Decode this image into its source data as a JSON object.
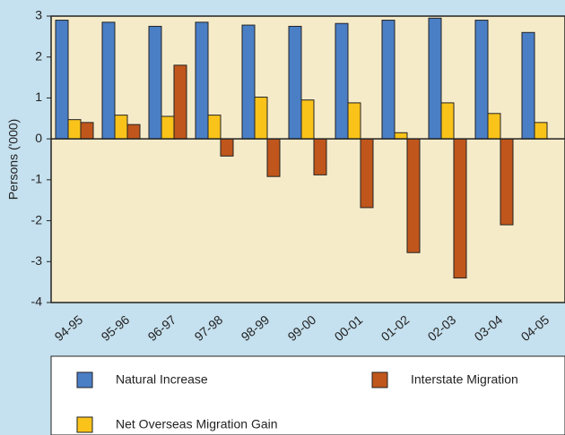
{
  "chart_data": {
    "type": "bar",
    "ylabel": "Persons ('000)",
    "categories": [
      "94-95",
      "95-96",
      "96-97",
      "97-98",
      "98-99",
      "99-00",
      "00-01",
      "01-02",
      "02-03",
      "03-04",
      "04-05"
    ],
    "series": [
      {
        "name": "Natural Increase",
        "color": "#4a7fc6",
        "values": [
          2.9,
          2.85,
          2.75,
          2.85,
          2.78,
          2.75,
          2.82,
          2.9,
          2.95,
          2.9,
          2.6
        ]
      },
      {
        "name": "Net Overseas Migration Gain",
        "color": "#f9c31a",
        "values": [
          0.47,
          0.58,
          0.55,
          0.58,
          1.02,
          0.95,
          0.88,
          0.15,
          0.88,
          0.62,
          0.4
        ]
      },
      {
        "name": "Interstate Migration",
        "color": "#c0561b",
        "values": [
          0.4,
          0.35,
          1.8,
          -0.42,
          -0.92,
          -0.88,
          -1.68,
          -2.78,
          -3.4,
          -2.1,
          null
        ]
      }
    ],
    "ylim": [
      -4,
      3
    ],
    "yticks": [
      -4,
      -3,
      -2,
      -1,
      0,
      1,
      2,
      3
    ]
  }
}
